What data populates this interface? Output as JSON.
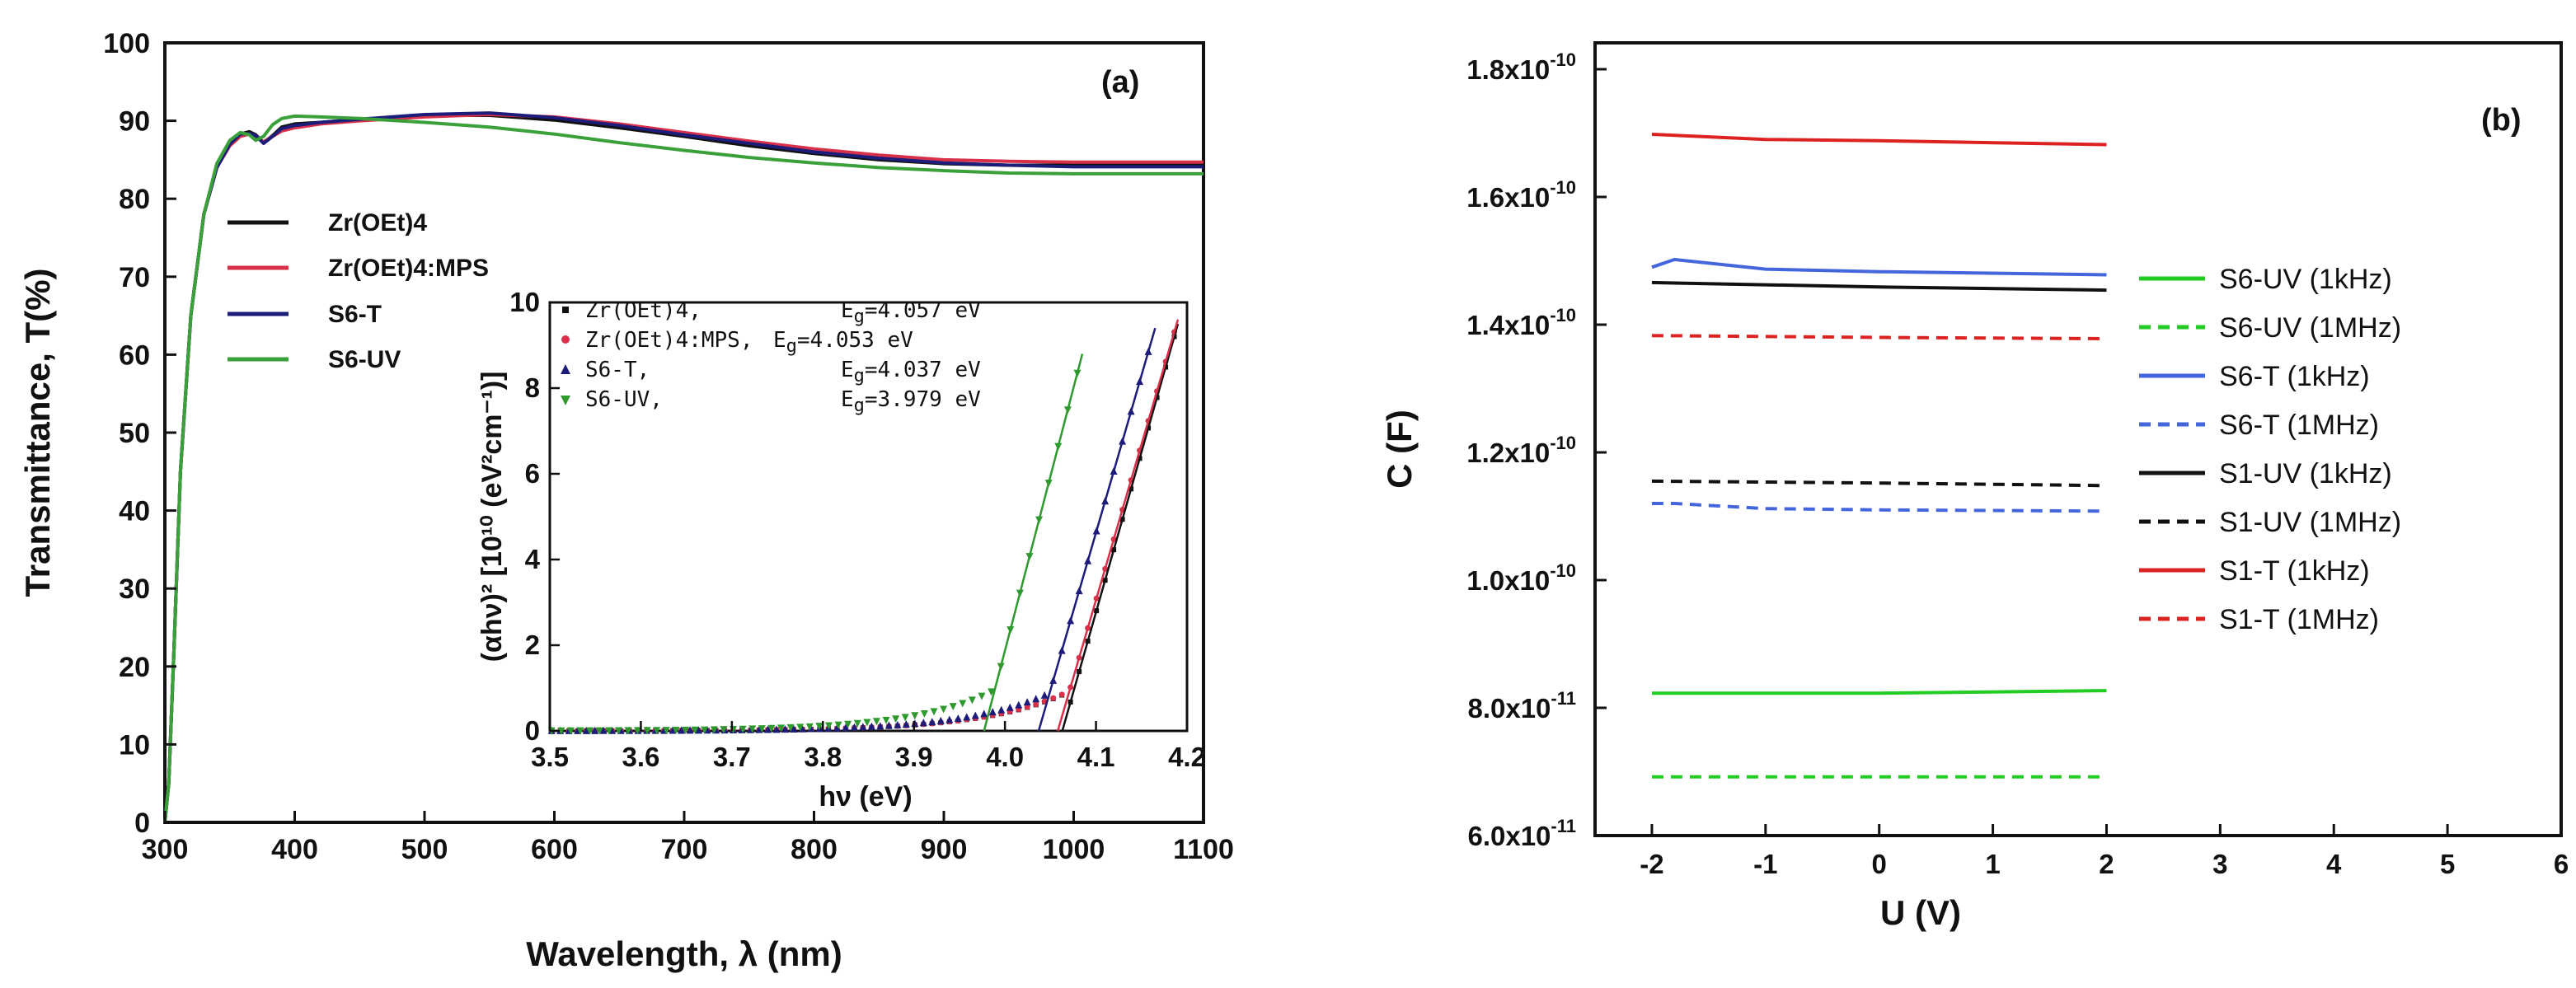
{
  "chart_data": [
    {
      "panel": "a",
      "type": "line",
      "panel_label": "(a)",
      "xlabel": "Wavelength, λ (nm)",
      "ylabel": "Transmittance, T(%)",
      "xlim": [
        300,
        1100
      ],
      "ylim": [
        0,
        100
      ],
      "xticks": [
        "300",
        "400",
        "500",
        "600",
        "700",
        "800",
        "900",
        "1000",
        "1100"
      ],
      "yticks": [
        "0",
        "10",
        "20",
        "30",
        "40",
        "50",
        "60",
        "70",
        "80",
        "90",
        "100"
      ],
      "legend_position": "top-left",
      "series": [
        {
          "name": "Zr(OEt)4",
          "color": "#111111",
          "x": [
            300,
            303,
            307,
            312,
            320,
            330,
            340,
            350,
            358,
            365,
            370,
            376,
            383,
            390,
            400,
            420,
            450,
            500,
            550,
            600,
            650,
            700,
            750,
            800,
            850,
            900,
            950,
            1000,
            1050,
            1100
          ],
          "y": [
            0,
            5,
            22,
            45,
            65,
            78,
            84,
            87,
            88.3,
            88.6,
            88.2,
            87.2,
            88.1,
            89.2,
            89.6,
            89.8,
            90.2,
            90.7,
            90.7,
            90.1,
            89.1,
            88,
            86.8,
            85.8,
            85,
            84.5,
            84.3,
            84.3,
            84.3,
            84.3
          ]
        },
        {
          "name": "Zr(OEt)4:MPS",
          "color": "#d9304a",
          "x": [
            300,
            303,
            307,
            312,
            320,
            330,
            340,
            350,
            358,
            365,
            370,
            376,
            383,
            390,
            400,
            420,
            450,
            500,
            550,
            600,
            650,
            700,
            750,
            800,
            850,
            900,
            950,
            1000,
            1050,
            1100
          ],
          "y": [
            0,
            5,
            22,
            45,
            65,
            78,
            84,
            86.8,
            88,
            88.3,
            88,
            87.3,
            88,
            88.7,
            89.1,
            89.6,
            90,
            90.5,
            90.8,
            90.5,
            89.6,
            88.5,
            87.4,
            86.4,
            85.6,
            85,
            84.8,
            84.7,
            84.7,
            84.7
          ]
        },
        {
          "name": "S6-T",
          "color": "#1c1c7a",
          "x": [
            300,
            303,
            307,
            312,
            320,
            330,
            340,
            350,
            358,
            365,
            370,
            376,
            383,
            390,
            400,
            420,
            450,
            500,
            550,
            600,
            650,
            700,
            750,
            800,
            850,
            900,
            950,
            1000,
            1050,
            1100
          ],
          "y": [
            0,
            5,
            22,
            45,
            65,
            78,
            84,
            87,
            88.3,
            88.4,
            88.1,
            87.1,
            88,
            89,
            89.4,
            89.8,
            90.2,
            90.8,
            91,
            90.4,
            89.4,
            88.2,
            87.1,
            86,
            85.2,
            84.6,
            84.3,
            84.1,
            84.1,
            84.1
          ]
        },
        {
          "name": "S6-UV",
          "color": "#3aa03a",
          "x": [
            300,
            303,
            307,
            312,
            320,
            330,
            340,
            350,
            358,
            365,
            370,
            376,
            383,
            390,
            400,
            420,
            450,
            500,
            550,
            600,
            650,
            700,
            750,
            800,
            850,
            900,
            950,
            1000,
            1050,
            1100
          ],
          "y": [
            0,
            5,
            22,
            45,
            65,
            78,
            84.5,
            87.5,
            88.5,
            88.2,
            87.5,
            88,
            89.5,
            90.3,
            90.6,
            90.5,
            90.3,
            89.8,
            89.2,
            88.3,
            87.2,
            86.2,
            85.3,
            84.6,
            84,
            83.6,
            83.3,
            83.2,
            83.2,
            83.2
          ]
        }
      ],
      "inset": {
        "type": "scatter",
        "xlabel": "hν (eV)",
        "ylabel": "(αhν)² [10¹⁰ (eV²cm⁻¹)]",
        "xlim": [
          3.5,
          4.2
        ],
        "ylim": [
          0,
          10
        ],
        "xticks": [
          "3.5",
          "3.6",
          "3.7",
          "3.8",
          "3.9",
          "4.0",
          "4.1",
          "4.2"
        ],
        "yticks": [
          "0",
          "2",
          "4",
          "6",
          "8",
          "10"
        ],
        "series": [
          {
            "name": "Zr(OEt)4,",
            "marker": "square",
            "color": "#111111",
            "eg_label": "E",
            "eg_sub": "g",
            "eg_value": "=4.057 eV",
            "fit_x": [
              4.063,
              4.19
            ],
            "fit_y": [
              0,
              9.5
            ]
          },
          {
            "name": "Zr(OEt)4:MPS,",
            "marker": "circle",
            "color": "#d9304a",
            "eg_label": "E",
            "eg_sub": "g",
            "eg_value": "=4.053 eV",
            "fit_x": [
              4.058,
              4.19
            ],
            "fit_y": [
              0,
              9.6
            ]
          },
          {
            "name": "S6-T,",
            "marker": "triangle-up",
            "color": "#1c1c7a",
            "eg_label": "E",
            "eg_sub": "g",
            "eg_value": "=4.037 eV",
            "fit_x": [
              4.037,
              4.165
            ],
            "fit_y": [
              0,
              9.4
            ]
          },
          {
            "name": "S6-UV,",
            "marker": "triangle-down",
            "color": "#2e9a2e",
            "eg_label": "E",
            "eg_sub": "g",
            "eg_value": "=3.979 eV",
            "fit_x": [
              3.977,
              4.085
            ],
            "fit_y": [
              0,
              8.8
            ]
          }
        ]
      }
    },
    {
      "panel": "b",
      "type": "line",
      "panel_label": "(b)",
      "xlabel": "U (V)",
      "ylabel": "C (F)",
      "xlim": [
        -2.5,
        6
      ],
      "ylim": [
        6e-11,
        1.8e-10
      ],
      "xticks": [
        "-2",
        "-1",
        "0",
        "1",
        "2",
        "3",
        "4",
        "5",
        "6"
      ],
      "yticks": [
        {
          "mant": "6.0x10",
          "exp": "-11"
        },
        {
          "mant": "8.0x10",
          "exp": "-11"
        },
        {
          "mant": "1.0x10",
          "exp": "-10"
        },
        {
          "mant": "1.2x10",
          "exp": "-10"
        },
        {
          "mant": "1.4x10",
          "exp": "-10"
        },
        {
          "mant": "1.6x10",
          "exp": "-10"
        },
        {
          "mant": "1.8x10",
          "exp": "-10"
        }
      ],
      "legend_position": "right",
      "series": [
        {
          "name": "S6-UV (1kHz)",
          "color": "#22cc22",
          "dash": false,
          "x": [
            -2,
            0,
            2
          ],
          "y": [
            8.23e-11,
            8.23e-11,
            8.27e-11
          ]
        },
        {
          "name": "S6-UV (1MHz)",
          "color": "#22cc22",
          "dash": true,
          "x": [
            -2,
            0,
            2
          ],
          "y": [
            6.92e-11,
            6.92e-11,
            6.92e-11
          ]
        },
        {
          "name": "S6-T (1kHz)",
          "color": "#4466dd",
          "dash": false,
          "x": [
            -2,
            -1.8,
            -1,
            0,
            2
          ],
          "y": [
            1.49e-10,
            1.502e-10,
            1.487e-10,
            1.483e-10,
            1.478e-10
          ]
        },
        {
          "name": "S6-T (1MHz)",
          "color": "#4466dd",
          "dash": true,
          "x": [
            -2,
            -1.8,
            -1,
            0,
            2
          ],
          "y": [
            1.12e-10,
            1.12e-10,
            1.112e-10,
            1.11e-10,
            1.108e-10
          ]
        },
        {
          "name": "S1-UV (1kHz)",
          "color": "#111111",
          "dash": false,
          "x": [
            -2,
            0,
            2
          ],
          "y": [
            1.466e-10,
            1.459e-10,
            1.454e-10
          ]
        },
        {
          "name": "S1-UV (1MHz)",
          "color": "#111111",
          "dash": true,
          "x": [
            -2,
            0,
            2
          ],
          "y": [
            1.155e-10,
            1.152e-10,
            1.148e-10
          ]
        },
        {
          "name": "S1-T (1kHz)",
          "color": "#dd2222",
          "dash": false,
          "x": [
            -2,
            -1,
            0,
            2
          ],
          "y": [
            1.698e-10,
            1.69e-10,
            1.688e-10,
            1.682e-10
          ]
        },
        {
          "name": "S1-T (1MHz)",
          "color": "#dd2222",
          "dash": true,
          "x": [
            -2,
            0,
            2
          ],
          "y": [
            1.383e-10,
            1.38e-10,
            1.378e-10
          ]
        }
      ]
    }
  ]
}
